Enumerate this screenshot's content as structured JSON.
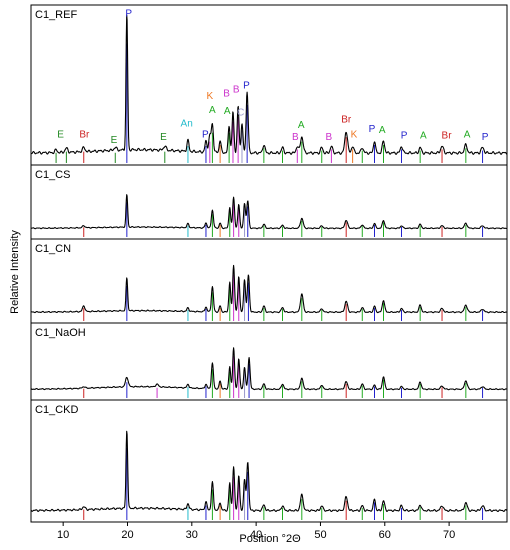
{
  "chart_data": {
    "type": "line",
    "xlabel": "Position °2Θ",
    "ylabel": "Relative Intensity",
    "xlim": [
      5,
      79
    ],
    "xticks": [
      10,
      20,
      30,
      40,
      50,
      60,
      70
    ],
    "phase_colors": {
      "P": "#2222cc",
      "A": "#22aa22",
      "B": "#cc33cc",
      "E": "#228822",
      "Br": "#cc2222",
      "K": "#ee7722",
      "An": "#22bbcc",
      "C": "#9999cc"
    },
    "series": [
      {
        "name": "C1_REF",
        "peaks": [
          {
            "x": 8.9,
            "y": 0.02,
            "w": 0.25,
            "phase": "E"
          },
          {
            "x": 10.5,
            "y": 0.03,
            "w": 0.3,
            "phase": "E"
          },
          {
            "x": 13.2,
            "y": 0.03,
            "w": 0.3,
            "phase": "Br"
          },
          {
            "x": 18.1,
            "y": 0.02,
            "w": 0.3,
            "phase": "E"
          },
          {
            "x": 19.9,
            "y": 1.0,
            "w": 0.18,
            "phase": "P"
          },
          {
            "x": 25.8,
            "y": 0.03,
            "w": 0.3,
            "phase": "E"
          },
          {
            "x": 29.4,
            "y": 0.08,
            "w": 0.22,
            "phase": "An"
          },
          {
            "x": 32.2,
            "y": 0.08,
            "w": 0.22,
            "phase": "P"
          },
          {
            "x": 32.8,
            "y": 0.12,
            "w": 0.25,
            "phase": "B"
          },
          {
            "x": 33.2,
            "y": 0.2,
            "w": 0.22,
            "phase": "A"
          },
          {
            "x": 34.4,
            "y": 0.09,
            "w": 0.2,
            "phase": "K"
          },
          {
            "x": 35.8,
            "y": 0.2,
            "w": 0.2,
            "phase": "A"
          },
          {
            "x": 36.4,
            "y": 0.3,
            "w": 0.2,
            "phase": "B"
          },
          {
            "x": 37.2,
            "y": 0.34,
            "w": 0.2,
            "phase": "B"
          },
          {
            "x": 37.8,
            "y": 0.22,
            "w": 0.2,
            "phase": "C"
          },
          {
            "x": 38.6,
            "y": 0.45,
            "w": 0.22,
            "phase": "P"
          },
          {
            "x": 41.2,
            "y": 0.06,
            "w": 0.25,
            "phase": "A"
          },
          {
            "x": 44.1,
            "y": 0.04,
            "w": 0.25,
            "phase": "A"
          },
          {
            "x": 46.4,
            "y": 0.05,
            "w": 0.25,
            "phase": "B"
          },
          {
            "x": 47.1,
            "y": 0.12,
            "w": 0.3,
            "phase": "A"
          },
          {
            "x": 50.2,
            "y": 0.04,
            "w": 0.25,
            "phase": "A"
          },
          {
            "x": 51.7,
            "y": 0.05,
            "w": 0.25,
            "phase": "B"
          },
          {
            "x": 54.0,
            "y": 0.16,
            "w": 0.3,
            "phase": "Br"
          },
          {
            "x": 55.0,
            "y": 0.05,
            "w": 0.25,
            "phase": "K"
          },
          {
            "x": 56.5,
            "y": 0.04,
            "w": 0.25,
            "phase": "A"
          },
          {
            "x": 58.4,
            "y": 0.09,
            "w": 0.22,
            "phase": "P"
          },
          {
            "x": 59.8,
            "y": 0.09,
            "w": 0.25,
            "phase": "A"
          },
          {
            "x": 62.6,
            "y": 0.05,
            "w": 0.25,
            "phase": "P"
          },
          {
            "x": 65.5,
            "y": 0.04,
            "w": 0.25,
            "phase": "A"
          },
          {
            "x": 68.9,
            "y": 0.05,
            "w": 0.3,
            "phase": "Br"
          },
          {
            "x": 72.6,
            "y": 0.06,
            "w": 0.3,
            "phase": "A"
          },
          {
            "x": 75.2,
            "y": 0.04,
            "w": 0.3,
            "phase": "P"
          }
        ],
        "labels": [
          {
            "text": "P",
            "x": 20.2,
            "y": 1.02,
            "phase": "P"
          },
          {
            "text": "E",
            "x": 9.6,
            "y": 0.13,
            "phase": "E"
          },
          {
            "text": "Br",
            "x": 13.3,
            "y": 0.13,
            "phase": "Br"
          },
          {
            "text": "E",
            "x": 17.9,
            "y": 0.09,
            "phase": "E"
          },
          {
            "text": "E",
            "x": 25.6,
            "y": 0.11,
            "phase": "E"
          },
          {
            "text": "An",
            "x": 29.2,
            "y": 0.21,
            "phase": "An"
          },
          {
            "text": "P",
            "x": 32.1,
            "y": 0.13,
            "phase": "P"
          },
          {
            "text": "K",
            "x": 32.8,
            "y": 0.41,
            "phase": "K"
          },
          {
            "text": "A",
            "x": 33.2,
            "y": 0.31,
            "phase": "A"
          },
          {
            "text": "B",
            "x": 35.4,
            "y": 0.43,
            "phase": "B"
          },
          {
            "text": "A",
            "x": 35.5,
            "y": 0.3,
            "phase": "A"
          },
          {
            "text": "B",
            "x": 36.9,
            "y": 0.46,
            "phase": "B"
          },
          {
            "text": "C",
            "x": 37.6,
            "y": 0.29,
            "phase": "C"
          },
          {
            "text": "P",
            "x": 38.5,
            "y": 0.49,
            "phase": "P"
          },
          {
            "text": "A",
            "x": 47.0,
            "y": 0.2,
            "phase": "A"
          },
          {
            "text": "B",
            "x": 46.1,
            "y": 0.11,
            "phase": "B"
          },
          {
            "text": "B",
            "x": 51.3,
            "y": 0.11,
            "phase": "B"
          },
          {
            "text": "Br",
            "x": 54.0,
            "y": 0.24,
            "phase": "Br"
          },
          {
            "text": "K",
            "x": 55.2,
            "y": 0.13,
            "phase": "K"
          },
          {
            "text": "P",
            "x": 58.0,
            "y": 0.17,
            "phase": "P"
          },
          {
            "text": "A",
            "x": 59.6,
            "y": 0.16,
            "phase": "A"
          },
          {
            "text": "P",
            "x": 63.0,
            "y": 0.12,
            "phase": "P"
          },
          {
            "text": "A",
            "x": 66.0,
            "y": 0.12,
            "phase": "A"
          },
          {
            "text": "Br",
            "x": 69.6,
            "y": 0.12,
            "phase": "Br"
          },
          {
            "text": "A",
            "x": 72.8,
            "y": 0.13,
            "phase": "A"
          },
          {
            "text": "P",
            "x": 75.6,
            "y": 0.11,
            "phase": "P"
          }
        ]
      },
      {
        "name": "C1_CS",
        "peaks": [
          {
            "x": 13.2,
            "y": 0.04,
            "w": 0.3,
            "phase": "Br"
          },
          {
            "x": 19.9,
            "y": 0.65,
            "w": 0.18,
            "phase": "P"
          },
          {
            "x": 29.4,
            "y": 0.08,
            "w": 0.22,
            "phase": "An"
          },
          {
            "x": 32.2,
            "y": 0.1,
            "w": 0.22,
            "phase": "P"
          },
          {
            "x": 33.2,
            "y": 0.36,
            "w": 0.22,
            "phase": "A"
          },
          {
            "x": 34.4,
            "y": 0.1,
            "w": 0.2,
            "phase": "K"
          },
          {
            "x": 35.9,
            "y": 0.42,
            "w": 0.2,
            "phase": "A"
          },
          {
            "x": 36.5,
            "y": 0.62,
            "w": 0.2,
            "phase": "B"
          },
          {
            "x": 37.3,
            "y": 0.48,
            "w": 0.2,
            "phase": "B"
          },
          {
            "x": 38.2,
            "y": 0.5,
            "w": 0.2,
            "phase": "C"
          },
          {
            "x": 38.7,
            "y": 0.55,
            "w": 0.22,
            "phase": "P"
          },
          {
            "x": 41.2,
            "y": 0.08,
            "w": 0.25,
            "phase": "A"
          },
          {
            "x": 44.1,
            "y": 0.06,
            "w": 0.25,
            "phase": "A"
          },
          {
            "x": 47.1,
            "y": 0.2,
            "w": 0.3,
            "phase": "A"
          },
          {
            "x": 50.2,
            "y": 0.05,
            "w": 0.25,
            "phase": "A"
          },
          {
            "x": 54.0,
            "y": 0.16,
            "w": 0.3,
            "phase": "Br"
          },
          {
            "x": 56.5,
            "y": 0.07,
            "w": 0.25,
            "phase": "A"
          },
          {
            "x": 58.4,
            "y": 0.1,
            "w": 0.22,
            "phase": "P"
          },
          {
            "x": 59.8,
            "y": 0.16,
            "w": 0.25,
            "phase": "A"
          },
          {
            "x": 62.6,
            "y": 0.05,
            "w": 0.25,
            "phase": "P"
          },
          {
            "x": 65.5,
            "y": 0.08,
            "w": 0.25,
            "phase": "A"
          },
          {
            "x": 68.9,
            "y": 0.05,
            "w": 0.3,
            "phase": "Br"
          },
          {
            "x": 72.6,
            "y": 0.1,
            "w": 0.3,
            "phase": "A"
          },
          {
            "x": 75.2,
            "y": 0.05,
            "w": 0.3,
            "phase": "P"
          }
        ],
        "labels": []
      },
      {
        "name": "C1_CN",
        "peaks": [
          {
            "x": 13.2,
            "y": 0.1,
            "w": 0.25,
            "phase": "Br"
          },
          {
            "x": 19.9,
            "y": 0.55,
            "w": 0.18,
            "phase": "P"
          },
          {
            "x": 29.4,
            "y": 0.06,
            "w": 0.22,
            "phase": "An"
          },
          {
            "x": 32.2,
            "y": 0.08,
            "w": 0.22,
            "phase": "P"
          },
          {
            "x": 33.2,
            "y": 0.42,
            "w": 0.22,
            "phase": "A"
          },
          {
            "x": 34.4,
            "y": 0.1,
            "w": 0.2,
            "phase": "K"
          },
          {
            "x": 35.9,
            "y": 0.5,
            "w": 0.2,
            "phase": "A"
          },
          {
            "x": 36.5,
            "y": 0.78,
            "w": 0.2,
            "phase": "B"
          },
          {
            "x": 37.3,
            "y": 0.6,
            "w": 0.2,
            "phase": "B"
          },
          {
            "x": 38.2,
            "y": 0.55,
            "w": 0.2,
            "phase": "C"
          },
          {
            "x": 38.8,
            "y": 0.62,
            "w": 0.22,
            "phase": "P"
          },
          {
            "x": 41.2,
            "y": 0.1,
            "w": 0.25,
            "phase": "A"
          },
          {
            "x": 44.1,
            "y": 0.08,
            "w": 0.25,
            "phase": "A"
          },
          {
            "x": 47.1,
            "y": 0.3,
            "w": 0.3,
            "phase": "A"
          },
          {
            "x": 50.2,
            "y": 0.06,
            "w": 0.25,
            "phase": "A"
          },
          {
            "x": 54.0,
            "y": 0.18,
            "w": 0.3,
            "phase": "Br"
          },
          {
            "x": 56.5,
            "y": 0.08,
            "w": 0.25,
            "phase": "A"
          },
          {
            "x": 58.4,
            "y": 0.1,
            "w": 0.22,
            "phase": "P"
          },
          {
            "x": 59.8,
            "y": 0.2,
            "w": 0.25,
            "phase": "A"
          },
          {
            "x": 62.6,
            "y": 0.06,
            "w": 0.25,
            "phase": "P"
          },
          {
            "x": 65.5,
            "y": 0.12,
            "w": 0.25,
            "phase": "A"
          },
          {
            "x": 68.9,
            "y": 0.06,
            "w": 0.3,
            "phase": "Br"
          },
          {
            "x": 72.6,
            "y": 0.12,
            "w": 0.3,
            "phase": "A"
          },
          {
            "x": 75.2,
            "y": 0.05,
            "w": 0.3,
            "phase": "P"
          }
        ],
        "labels": []
      },
      {
        "name": "C1_NaOH",
        "peaks": [
          {
            "x": 13.2,
            "y": 0.03,
            "w": 0.3,
            "phase": "Br"
          },
          {
            "x": 19.9,
            "y": 0.18,
            "w": 0.3,
            "phase": "P"
          },
          {
            "x": 24.6,
            "y": 0.05,
            "w": 0.3,
            "phase": "B"
          },
          {
            "x": 29.4,
            "y": 0.07,
            "w": 0.22,
            "phase": "An"
          },
          {
            "x": 32.2,
            "y": 0.08,
            "w": 0.22,
            "phase": "P"
          },
          {
            "x": 33.2,
            "y": 0.48,
            "w": 0.22,
            "phase": "A"
          },
          {
            "x": 34.4,
            "y": 0.15,
            "w": 0.2,
            "phase": "K"
          },
          {
            "x": 35.9,
            "y": 0.42,
            "w": 0.2,
            "phase": "A"
          },
          {
            "x": 36.5,
            "y": 0.78,
            "w": 0.2,
            "phase": "B"
          },
          {
            "x": 37.3,
            "y": 0.58,
            "w": 0.2,
            "phase": "B"
          },
          {
            "x": 38.2,
            "y": 0.42,
            "w": 0.2,
            "phase": "C"
          },
          {
            "x": 38.9,
            "y": 0.6,
            "w": 0.22,
            "phase": "P"
          },
          {
            "x": 41.2,
            "y": 0.1,
            "w": 0.25,
            "phase": "A"
          },
          {
            "x": 44.1,
            "y": 0.1,
            "w": 0.25,
            "phase": "A"
          },
          {
            "x": 47.1,
            "y": 0.2,
            "w": 0.3,
            "phase": "A"
          },
          {
            "x": 50.2,
            "y": 0.08,
            "w": 0.25,
            "phase": "A"
          },
          {
            "x": 54.0,
            "y": 0.14,
            "w": 0.3,
            "phase": "Br"
          },
          {
            "x": 56.5,
            "y": 0.1,
            "w": 0.25,
            "phase": "A"
          },
          {
            "x": 58.4,
            "y": 0.08,
            "w": 0.22,
            "phase": "P"
          },
          {
            "x": 59.8,
            "y": 0.24,
            "w": 0.25,
            "phase": "A"
          },
          {
            "x": 62.6,
            "y": 0.05,
            "w": 0.25,
            "phase": "P"
          },
          {
            "x": 65.5,
            "y": 0.14,
            "w": 0.25,
            "phase": "A"
          },
          {
            "x": 68.9,
            "y": 0.06,
            "w": 0.3,
            "phase": "Br"
          },
          {
            "x": 72.6,
            "y": 0.16,
            "w": 0.3,
            "phase": "A"
          },
          {
            "x": 75.2,
            "y": 0.05,
            "w": 0.3,
            "phase": "P"
          }
        ],
        "labels": []
      },
      {
        "name": "C1_CKD",
        "peaks": [
          {
            "x": 13.2,
            "y": 0.03,
            "w": 0.3,
            "phase": "Br"
          },
          {
            "x": 19.9,
            "y": 0.8,
            "w": 0.18,
            "phase": "P"
          },
          {
            "x": 29.4,
            "y": 0.06,
            "w": 0.22,
            "phase": "An"
          },
          {
            "x": 32.2,
            "y": 0.08,
            "w": 0.22,
            "phase": "P"
          },
          {
            "x": 33.2,
            "y": 0.28,
            "w": 0.22,
            "phase": "A"
          },
          {
            "x": 34.4,
            "y": 0.08,
            "w": 0.2,
            "phase": "K"
          },
          {
            "x": 35.9,
            "y": 0.28,
            "w": 0.2,
            "phase": "A"
          },
          {
            "x": 36.5,
            "y": 0.44,
            "w": 0.2,
            "phase": "B"
          },
          {
            "x": 37.3,
            "y": 0.36,
            "w": 0.2,
            "phase": "B"
          },
          {
            "x": 38.2,
            "y": 0.32,
            "w": 0.2,
            "phase": "C"
          },
          {
            "x": 38.7,
            "y": 0.5,
            "w": 0.22,
            "phase": "P"
          },
          {
            "x": 41.2,
            "y": 0.06,
            "w": 0.25,
            "phase": "A"
          },
          {
            "x": 44.1,
            "y": 0.05,
            "w": 0.25,
            "phase": "A"
          },
          {
            "x": 47.1,
            "y": 0.16,
            "w": 0.3,
            "phase": "A"
          },
          {
            "x": 50.2,
            "y": 0.05,
            "w": 0.25,
            "phase": "A"
          },
          {
            "x": 54.0,
            "y": 0.14,
            "w": 0.3,
            "phase": "Br"
          },
          {
            "x": 56.5,
            "y": 0.05,
            "w": 0.25,
            "phase": "A"
          },
          {
            "x": 58.4,
            "y": 0.12,
            "w": 0.22,
            "phase": "P"
          },
          {
            "x": 59.8,
            "y": 0.1,
            "w": 0.25,
            "phase": "A"
          },
          {
            "x": 62.6,
            "y": 0.05,
            "w": 0.25,
            "phase": "P"
          },
          {
            "x": 65.5,
            "y": 0.06,
            "w": 0.25,
            "phase": "A"
          },
          {
            "x": 68.9,
            "y": 0.05,
            "w": 0.3,
            "phase": "Br"
          },
          {
            "x": 72.6,
            "y": 0.08,
            "w": 0.3,
            "phase": "A"
          },
          {
            "x": 75.2,
            "y": 0.05,
            "w": 0.3,
            "phase": "P"
          }
        ],
        "labels": []
      }
    ]
  }
}
